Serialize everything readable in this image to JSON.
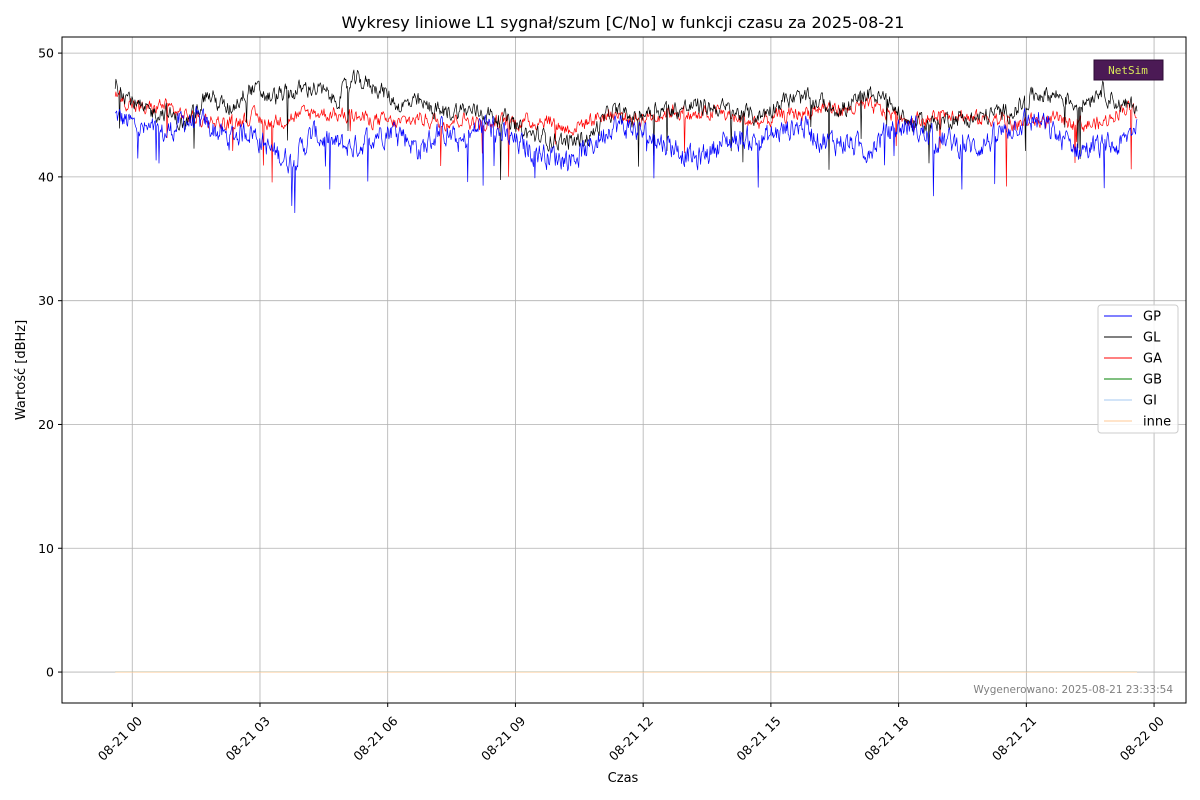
{
  "chart_data": {
    "type": "line",
    "title": "Wykresy liniowe L1 sygnał/szum [C/No] w funkcji czasu za 2025-08-21",
    "xlabel": "Czas",
    "ylabel": "Wartość [dBHz]",
    "ylim": [
      -2.5,
      51.3
    ],
    "yticks": [
      0,
      10,
      20,
      30,
      40,
      50
    ],
    "xlim_hours": [
      -1.65,
      24.75
    ],
    "xticks": [
      {
        "hour": 0,
        "label": "08-21 00"
      },
      {
        "hour": 3,
        "label": "08-21 03"
      },
      {
        "hour": 6,
        "label": "08-21 06"
      },
      {
        "hour": 9,
        "label": "08-21 09"
      },
      {
        "hour": 12,
        "label": "08-21 12"
      },
      {
        "hour": 15,
        "label": "08-21 15"
      },
      {
        "hour": 18,
        "label": "08-21 18"
      },
      {
        "hour": 21,
        "label": "08-21 21"
      },
      {
        "hour": 24,
        "label": "08-22 00"
      }
    ],
    "grid": true,
    "legend_position": "center-right",
    "series": [
      {
        "name": "GP",
        "color": "#0000ff",
        "x_hours": [
          -0.4,
          0.25,
          0.75,
          1.25,
          1.75,
          2.25,
          2.75,
          3.25,
          3.75,
          4.25,
          4.75,
          5.25,
          5.75,
          6.25,
          6.75,
          7.25,
          7.75,
          8.25,
          8.75,
          9.25,
          9.75,
          10.25,
          10.75,
          11.25,
          11.75,
          12.25,
          12.75,
          13.25,
          13.75,
          14.25,
          14.75,
          15.25,
          15.75,
          16.25,
          16.75,
          17.25,
          17.75,
          18.25,
          18.75,
          19.25,
          19.75,
          20.25,
          20.75,
          21.25,
          21.75,
          22.25,
          22.75,
          23.25,
          23.6
        ],
        "values": [
          44.9,
          43.8,
          43.4,
          44.6,
          44.2,
          43.1,
          43.9,
          42.1,
          41.3,
          43.5,
          42.6,
          42.4,
          43.6,
          43.9,
          42.1,
          43.8,
          42.6,
          44.4,
          43.2,
          42.3,
          41.8,
          41.5,
          42.3,
          44.3,
          43.9,
          43.1,
          42.4,
          41.3,
          42.6,
          43.1,
          42.9,
          43.7,
          44.2,
          42.9,
          42.8,
          42.2,
          43.6,
          44.2,
          43.1,
          42.8,
          42.4,
          43.1,
          44.3,
          44.6,
          43.2,
          42.2,
          42.4,
          42.5,
          44.5
        ]
      },
      {
        "name": "GL",
        "color": "#000000",
        "x_hours": [
          -0.4,
          0.25,
          0.75,
          1.25,
          1.75,
          2.25,
          2.75,
          3.25,
          3.75,
          4.25,
          4.75,
          5.25,
          5.75,
          6.25,
          6.75,
          7.25,
          7.75,
          8.25,
          8.75,
          9.25,
          9.75,
          10.25,
          10.75,
          11.25,
          11.75,
          12.25,
          12.75,
          13.25,
          13.75,
          14.25,
          14.75,
          15.25,
          15.75,
          16.25,
          16.75,
          17.25,
          17.75,
          18.25,
          18.75,
          19.25,
          19.75,
          20.25,
          20.75,
          21.25,
          21.75,
          22.25,
          22.75,
          23.25,
          23.6
        ],
        "values": [
          47.7,
          45.2,
          45.3,
          44.1,
          46.7,
          45.4,
          47.2,
          46.4,
          46.8,
          47.3,
          46.2,
          47.8,
          47.3,
          45.8,
          45.9,
          45.2,
          45.4,
          45.2,
          44.6,
          43.5,
          43.1,
          42.8,
          43.2,
          45.3,
          44.7,
          45.6,
          45.4,
          45.7,
          45.6,
          45.1,
          44.9,
          46.2,
          46.3,
          45.9,
          45.4,
          46.8,
          46.1,
          44.4,
          44.2,
          44.8,
          44.6,
          45.1,
          45.4,
          46.8,
          46.6,
          45.8,
          47.2,
          45.6,
          45.8
        ]
      },
      {
        "name": "GA",
        "color": "#ff0000",
        "x_hours": [
          -0.4,
          0.25,
          0.75,
          1.25,
          1.75,
          2.25,
          2.75,
          3.25,
          3.75,
          4.25,
          4.75,
          5.25,
          5.75,
          6.25,
          6.75,
          7.25,
          7.75,
          8.25,
          8.75,
          9.25,
          9.75,
          10.25,
          10.75,
          11.25,
          11.75,
          12.25,
          12.75,
          13.25,
          13.75,
          14.25,
          14.75,
          15.25,
          15.75,
          16.25,
          16.75,
          17.25,
          17.75,
          18.25,
          18.75,
          19.25,
          19.75,
          20.25,
          20.75,
          21.25,
          21.75,
          22.25,
          22.75,
          23.25,
          23.6
        ],
        "values": [
          46.6,
          45.4,
          45.8,
          44.9,
          44.6,
          44.2,
          44.9,
          44.4,
          44.8,
          45.2,
          45.1,
          44.8,
          44.6,
          44.3,
          44.8,
          44.4,
          44.7,
          44.2,
          44.5,
          44.4,
          44.6,
          43.8,
          44.6,
          45.1,
          44.7,
          44.9,
          45.4,
          44.8,
          45.3,
          44.6,
          44.4,
          44.9,
          45.2,
          45.6,
          45.4,
          45.7,
          45.2,
          44.6,
          44.7,
          45.3,
          44.6,
          44.8,
          44.2,
          44.5,
          44.6,
          44.3,
          44.2,
          45.6,
          45.5
        ]
      },
      {
        "name": "GB",
        "color": "#008000",
        "x_hours": [
          -0.4,
          23.6
        ],
        "values": [
          0,
          0
        ]
      },
      {
        "name": "GI",
        "color": "#a6c8f0",
        "x_hours": [
          -0.4,
          23.6
        ],
        "values": [
          0,
          0
        ]
      },
      {
        "name": "inne",
        "color": "#ffc896",
        "x_hours": [
          -0.4,
          23.6
        ],
        "values": [
          0,
          0
        ]
      }
    ]
  },
  "footnote": "Wygenerowano: 2025-08-21 23:33:54",
  "logo_text": "NetSim"
}
